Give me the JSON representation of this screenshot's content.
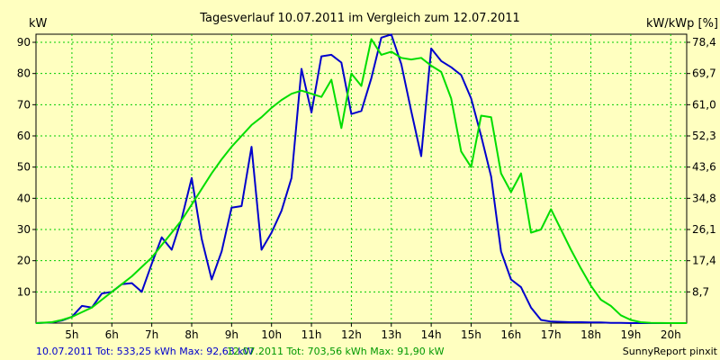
{
  "chart_data": {
    "type": "line",
    "title": "Tagesverlauf 10.07.2011 im Vergleich zum 12.07.2011",
    "ylabel_left": "kW",
    "ylabel_right": "kW/kWp [%]",
    "xlim": [
      4.1,
      20.4
    ],
    "ylim": [
      0,
      92.6
    ],
    "y_ticks": [
      10,
      20,
      30,
      40,
      50,
      60,
      70,
      80,
      90
    ],
    "y2_ticks": [
      "8,7",
      "17,4",
      "26,1",
      "34,8",
      "43,6",
      "52,3",
      "61,0",
      "69,7",
      "78,4"
    ],
    "x_ticks": [
      5,
      6,
      7,
      8,
      9,
      10,
      11,
      12,
      13,
      14,
      15,
      16,
      17,
      18,
      19,
      20
    ],
    "x_tick_labels": [
      "5h",
      "6h",
      "7h",
      "8h",
      "9h",
      "10h",
      "11h",
      "12h",
      "13h",
      "14h",
      "15h",
      "16h",
      "17h",
      "18h",
      "19h",
      "20h"
    ],
    "grid": true,
    "series": [
      {
        "name": "10.07.2011",
        "color": "#0000cc",
        "x": [
          4.1,
          4.5,
          4.75,
          5.0,
          5.25,
          5.5,
          5.75,
          6.0,
          6.25,
          6.5,
          6.75,
          7.0,
          7.25,
          7.5,
          7.75,
          8.0,
          8.25,
          8.5,
          8.75,
          9.0,
          9.25,
          9.5,
          9.75,
          10.0,
          10.25,
          10.5,
          10.75,
          11.0,
          11.25,
          11.5,
          11.75,
          12.0,
          12.25,
          12.5,
          12.75,
          13.0,
          13.25,
          13.5,
          13.75,
          14.0,
          14.25,
          14.5,
          14.75,
          15.0,
          15.25,
          15.5,
          15.75,
          16.0,
          16.25,
          16.5,
          16.75,
          17.0,
          17.25,
          17.5,
          17.75,
          18.0,
          18.25,
          18.5,
          18.75,
          19.0,
          19.5,
          20.0,
          20.4
        ],
        "values": [
          0.0,
          0.2,
          0.8,
          2.0,
          5.5,
          5.0,
          9.5,
          10.0,
          12.5,
          12.8,
          10.0,
          19.0,
          27.5,
          23.5,
          33.5,
          46.5,
          27.0,
          14.0,
          23.0,
          37.0,
          37.5,
          56.5,
          23.5,
          29.0,
          36.0,
          46.5,
          81.5,
          67.5,
          85.5,
          86.0,
          83.5,
          67.0,
          68.0,
          78.5,
          91.5,
          92.5,
          83.0,
          68.0,
          53.5,
          88.0,
          84.0,
          82.0,
          79.5,
          72.0,
          60.0,
          47.0,
          23.0,
          14.0,
          11.5,
          5.0,
          1.0,
          0.5,
          0.4,
          0.3,
          0.3,
          0.2,
          0.2,
          0.1,
          0.1,
          0.0,
          0.0,
          0.0,
          0.0
        ]
      },
      {
        "name": "12.07.2011",
        "color": "#00dd00",
        "x": [
          4.1,
          4.5,
          4.75,
          5.0,
          5.25,
          5.5,
          5.75,
          6.0,
          6.25,
          6.5,
          6.75,
          7.0,
          7.25,
          7.5,
          7.75,
          8.0,
          8.25,
          8.5,
          8.75,
          9.0,
          9.25,
          9.5,
          9.75,
          10.0,
          10.25,
          10.5,
          10.75,
          11.0,
          11.25,
          11.5,
          11.75,
          12.0,
          12.25,
          12.5,
          12.75,
          13.0,
          13.25,
          13.5,
          13.75,
          14.0,
          14.25,
          14.5,
          14.75,
          15.0,
          15.25,
          15.5,
          15.75,
          16.0,
          16.25,
          16.5,
          16.75,
          17.0,
          17.25,
          17.5,
          17.75,
          18.0,
          18.25,
          18.5,
          18.75,
          19.0,
          19.25,
          19.5,
          20.0,
          20.4
        ],
        "values": [
          0.0,
          0.3,
          1.0,
          2.0,
          3.5,
          5.0,
          7.5,
          10.0,
          12.5,
          15.0,
          18.0,
          21.0,
          25.0,
          29.0,
          33.0,
          38.0,
          43.0,
          48.0,
          52.5,
          56.5,
          60.0,
          63.5,
          66.0,
          69.0,
          71.5,
          73.5,
          74.5,
          73.5,
          72.5,
          78.0,
          62.5,
          80.0,
          76.0,
          91.0,
          86.0,
          87.0,
          85.0,
          84.5,
          85.0,
          82.5,
          80.5,
          72.0,
          55.0,
          50.0,
          66.5,
          66.0,
          48.0,
          42.0,
          48.0,
          29.0,
          30.0,
          36.5,
          30.0,
          23.5,
          17.5,
          12.0,
          7.5,
          5.5,
          2.5,
          1.0,
          0.3,
          0.1,
          0.0,
          0.0
        ]
      }
    ],
    "footer": {
      "series1_summary": "10.07.2011 Tot: 533,25 kWh Max: 92,63 kW",
      "series2_summary": "12.07.2011 Tot: 703,56 kWh Max: 91,90 kW",
      "credit": "SunnyReport pinxit"
    }
  }
}
